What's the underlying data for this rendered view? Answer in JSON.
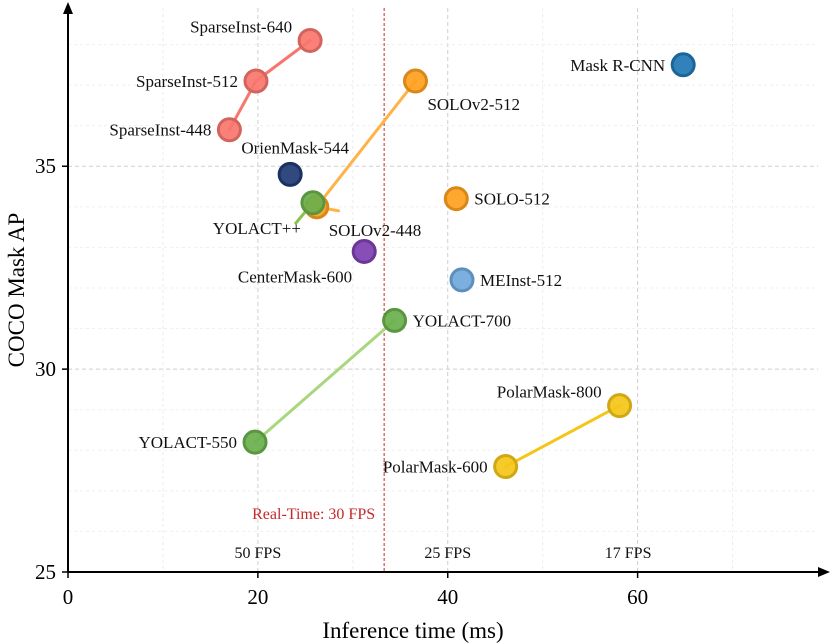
{
  "chart_data": {
    "type": "scatter",
    "xlabel": "Inference time (ms)",
    "ylabel": "COCO Mask AP",
    "xlim": [
      0,
      79
    ],
    "ylim": [
      25,
      38.9
    ],
    "x_ticks": [
      0,
      20,
      40,
      60
    ],
    "x_tick_labels": [
      "0",
      "20",
      "40",
      "60"
    ],
    "y_ticks": [
      25,
      30,
      35
    ],
    "y_tick_labels": [
      "25",
      "30",
      "35"
    ],
    "grid": true,
    "reference_line": {
      "x": 33.3,
      "label": "Real-Time: 30 FPS",
      "color": "#c62828"
    },
    "fps_labels": [
      {
        "x": 20,
        "label": "50 FPS"
      },
      {
        "x": 40,
        "label": "25 FPS"
      },
      {
        "x": 59,
        "label": "17 FPS"
      }
    ],
    "points": [
      {
        "id": "sparseinst-640",
        "label": "SparseInst-640",
        "x": 25.5,
        "y": 38.1,
        "color": "#f8766d",
        "label_pos": "left-up"
      },
      {
        "id": "sparseinst-512",
        "label": "SparseInst-512",
        "x": 19.8,
        "y": 37.1,
        "color": "#f8766d",
        "label_pos": "left"
      },
      {
        "id": "sparseinst-448",
        "label": "SparseInst-448",
        "x": 17.0,
        "y": 35.9,
        "color": "#f8766d",
        "label_pos": "left"
      },
      {
        "id": "mask-rcnn",
        "label": "Mask R-CNN",
        "x": 64.8,
        "y": 37.5,
        "color": "#1f77b4",
        "label_pos": "left"
      },
      {
        "id": "solov2-512",
        "label": "SOLOv2-512",
        "x": 36.6,
        "y": 37.1,
        "color": "#ff9f1c",
        "label_pos": "right-down"
      },
      {
        "id": "orienmask-544",
        "label": "OrienMask-544",
        "x": 23.4,
        "y": 34.8,
        "color": "#1f3a73",
        "label_pos": "up"
      },
      {
        "id": "solo-512",
        "label": "SOLO-512",
        "x": 40.9,
        "y": 34.2,
        "color": "#ff9f1c",
        "label_pos": "right"
      },
      {
        "id": "solov2-448",
        "label": "SOLOv2-448",
        "x": 26.2,
        "y": 34.0,
        "color": "#ff9f1c",
        "label_pos": "right-down"
      },
      {
        "id": "yolact-pp",
        "label": "YOLACT++",
        "x": 25.8,
        "y": 34.1,
        "color": "#6ab04c",
        "label_pos": "left-down"
      },
      {
        "id": "centermask-600",
        "label": "CenterMask-600",
        "x": 31.2,
        "y": 32.9,
        "color": "#7e3fb1",
        "label_pos": "left-down"
      },
      {
        "id": "meinst-512",
        "label": "MEInst-512",
        "x": 41.5,
        "y": 32.2,
        "color": "#6fa8dc",
        "label_pos": "right"
      },
      {
        "id": "yolact-700",
        "label": "YOLACT-700",
        "x": 34.4,
        "y": 31.2,
        "color": "#6ab04c",
        "label_pos": "right"
      },
      {
        "id": "yolact-550",
        "label": "YOLACT-550",
        "x": 19.7,
        "y": 28.2,
        "color": "#6ab04c",
        "label_pos": "left"
      },
      {
        "id": "polarmask-800",
        "label": "PolarMask-800",
        "x": 58.1,
        "y": 29.1,
        "color": "#f5c518",
        "label_pos": "left-up"
      },
      {
        "id": "polarmask-600",
        "label": "PolarMask-600",
        "x": 46.1,
        "y": 27.6,
        "color": "#f5c518",
        "label_pos": "left"
      }
    ],
    "lines": [
      {
        "id": "sparseinst-line",
        "color": "#f8766d",
        "points": [
          [
            17.0,
            35.9
          ],
          [
            19.8,
            37.1
          ],
          [
            25.5,
            38.1
          ]
        ]
      },
      {
        "id": "solov2-line",
        "color": "#ffb347",
        "points": [
          [
            28.5,
            33.9
          ],
          [
            26.2,
            34.0
          ],
          [
            36.6,
            37.1
          ]
        ]
      },
      {
        "id": "yolact-line",
        "color": "#a8d77e",
        "points": [
          [
            19.7,
            28.2
          ],
          [
            34.4,
            31.2
          ]
        ]
      },
      {
        "id": "yolactpp-line",
        "color": "#8bc34a",
        "points": [
          [
            24.0,
            33.6
          ],
          [
            25.8,
            34.1
          ]
        ]
      },
      {
        "id": "polarmask-line",
        "color": "#f5c518",
        "points": [
          [
            46.1,
            27.6
          ],
          [
            58.1,
            29.1
          ]
        ]
      }
    ]
  }
}
